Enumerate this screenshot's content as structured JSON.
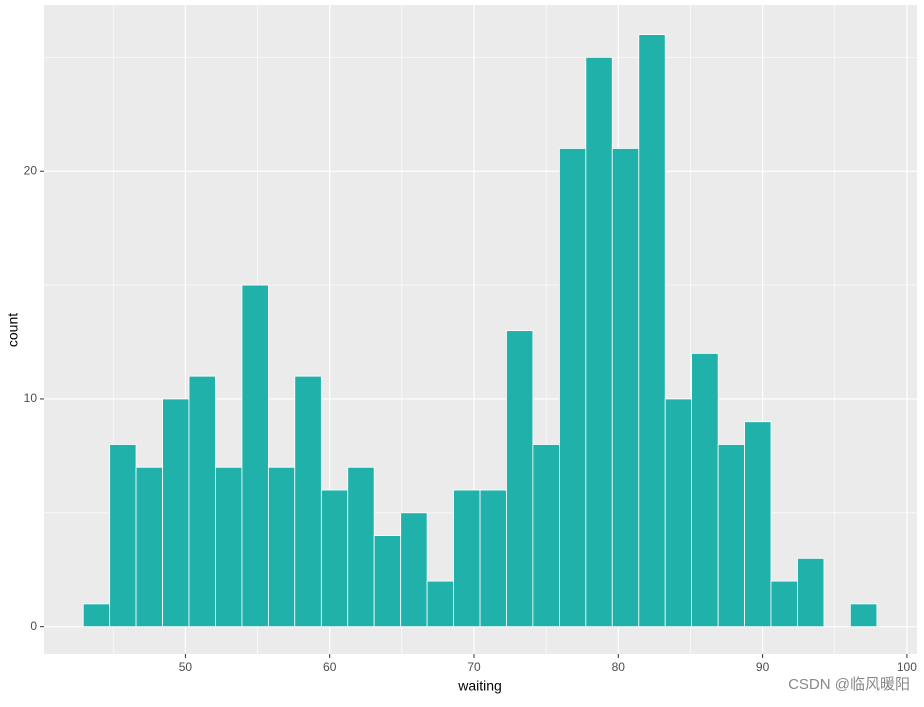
{
  "chart_data": {
    "type": "histogram",
    "x_label": "waiting",
    "y_label": "count",
    "bins": [
      42.92,
      44.75,
      46.58,
      48.42,
      50.25,
      52.08,
      53.92,
      55.75,
      57.58,
      59.42,
      61.25,
      63.08,
      64.92,
      66.75,
      68.58,
      70.42,
      72.25,
      74.08,
      75.92,
      77.75,
      79.58,
      81.42,
      83.25,
      85.08,
      86.92,
      88.75,
      90.58,
      92.42,
      94.25,
      96.08,
      97.92
    ],
    "values": [
      1,
      8,
      7,
      10,
      11,
      7,
      15,
      7,
      11,
      6,
      7,
      4,
      5,
      2,
      6,
      6,
      13,
      8,
      21,
      25,
      21,
      26,
      10,
      12,
      8,
      9,
      2,
      3,
      0,
      1
    ],
    "color": "#20b2aa",
    "xlim": [
      40.2,
      100.7
    ],
    "ylim": [
      -1.2,
      27.3
    ],
    "xticks": [
      50,
      60,
      70,
      80,
      90,
      100
    ],
    "yticks": [
      0,
      10,
      20
    ],
    "minor_xticks": [
      45,
      55,
      65,
      75,
      85,
      95
    ],
    "minor_yticks": [
      5,
      15,
      25
    ],
    "grid": true,
    "watermark": "CSDN @临风暖阳"
  }
}
